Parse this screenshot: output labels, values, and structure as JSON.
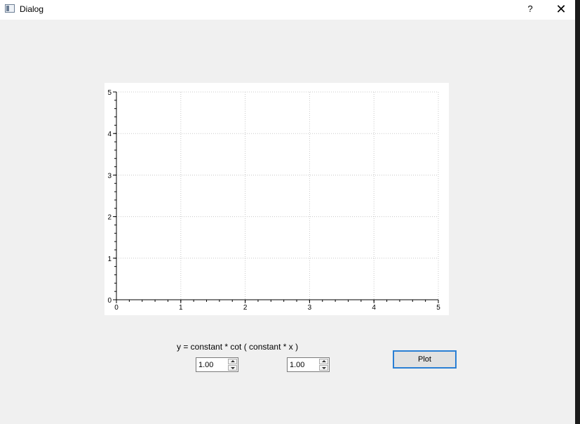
{
  "window": {
    "title": "Dialog",
    "help_label": "?",
    "close_label": "✕"
  },
  "chart_data": {
    "type": "line",
    "title": "",
    "xlabel": "",
    "ylabel": "",
    "xlim": [
      0,
      5
    ],
    "ylim": [
      0,
      5
    ],
    "x_ticks": [
      "0",
      "1",
      "2",
      "3",
      "4",
      "5"
    ],
    "y_ticks": [
      "0",
      "1",
      "2",
      "3",
      "4",
      "5"
    ],
    "grid": true,
    "grid_style": "dotted",
    "series": []
  },
  "formula": {
    "text": "y = constant * cot ( constant * x )"
  },
  "controls": {
    "constant_1": "1.00",
    "constant_2": "1.00",
    "plot_label": "Plot"
  },
  "colors": {
    "accent": "#2a7fd4",
    "grid": "#c8c8c8",
    "axis": "#000000"
  }
}
